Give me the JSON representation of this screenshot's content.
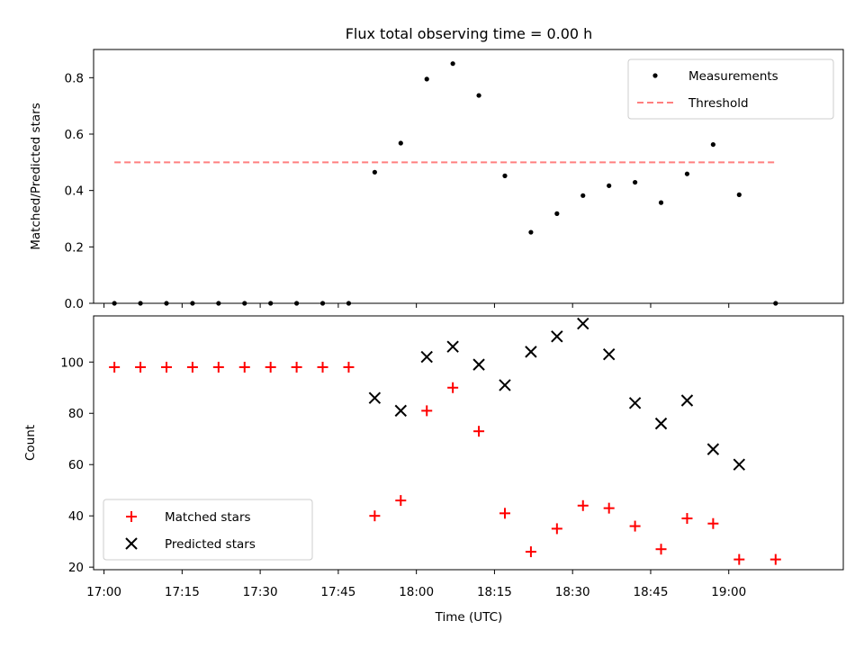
{
  "chart_data": [
    {
      "type": "scatter",
      "title": "Flux total observing time = 0.00 h",
      "xlabel": "",
      "ylabel": "Matched/Predicted stars",
      "ylim": [
        0,
        0.9
      ],
      "yticks": [
        "0.0",
        "0.2",
        "0.4",
        "0.6",
        "0.8"
      ],
      "ytick_values": [
        0,
        0.2,
        0.4,
        0.6,
        0.8
      ],
      "legend_position": "top-right",
      "series": [
        {
          "name": "Measurements",
          "marker": "dot",
          "color": "#000000",
          "x": [
            "17:02",
            "17:07",
            "17:12",
            "17:17",
            "17:22",
            "17:27",
            "17:32",
            "17:37",
            "17:42",
            "17:47",
            "17:52",
            "17:57",
            "18:02",
            "18:07",
            "18:12",
            "18:17",
            "18:22",
            "18:27",
            "18:32",
            "18:37",
            "18:42",
            "18:47",
            "18:52",
            "18:57",
            "19:02",
            "19:09"
          ],
          "values": [
            0,
            0,
            0,
            0,
            0,
            0,
            0,
            0,
            0,
            0,
            0.465,
            0.568,
            0.795,
            0.85,
            0.737,
            0.452,
            0.252,
            0.318,
            0.382,
            0.417,
            0.429,
            0.357,
            0.459,
            0.563,
            0.385,
            0
          ]
        },
        {
          "name": "Threshold",
          "style": "dashed",
          "color": "#ff7f7f",
          "x": [
            "17:02",
            "19:09"
          ],
          "values": [
            0.5,
            0.5
          ]
        }
      ]
    },
    {
      "type": "scatter",
      "title": "",
      "xlabel": "Time (UTC)",
      "ylabel": "Count",
      "ylim": [
        19,
        118
      ],
      "yticks": [
        "20",
        "40",
        "60",
        "80",
        "100"
      ],
      "ytick_values": [
        20,
        40,
        60,
        80,
        100
      ],
      "xticks": [
        "17:00",
        "17:15",
        "17:30",
        "17:45",
        "18:00",
        "18:15",
        "18:30",
        "18:45",
        "19:00"
      ],
      "xlim": [
        "16:58",
        "19:22"
      ],
      "legend_position": "bottom-left",
      "series": [
        {
          "name": "Matched stars",
          "marker": "plus",
          "color": "#ff0000",
          "x": [
            "17:02",
            "17:07",
            "17:12",
            "17:17",
            "17:22",
            "17:27",
            "17:32",
            "17:37",
            "17:42",
            "17:47",
            "17:52",
            "17:57",
            "18:02",
            "18:07",
            "18:12",
            "18:17",
            "18:22",
            "18:27",
            "18:32",
            "18:37",
            "18:42",
            "18:47",
            "18:52",
            "18:57",
            "19:02",
            "19:09"
          ],
          "values": [
            98,
            98,
            98,
            98,
            98,
            98,
            98,
            98,
            98,
            98,
            40,
            46,
            81,
            90,
            73,
            41,
            26,
            35,
            44,
            43,
            36,
            27,
            39,
            37,
            23,
            23
          ]
        },
        {
          "name": "Predicted stars",
          "marker": "x",
          "color": "#000000",
          "x": [
            "17:52",
            "17:57",
            "18:02",
            "18:07",
            "18:12",
            "18:17",
            "18:22",
            "18:27",
            "18:32",
            "18:37",
            "18:42",
            "18:47",
            "18:52",
            "18:57",
            "19:02"
          ],
          "values": [
            86,
            81,
            102,
            106,
            99,
            91,
            104,
            110,
            115,
            103,
            84,
            76,
            85,
            66,
            60
          ]
        }
      ]
    }
  ]
}
